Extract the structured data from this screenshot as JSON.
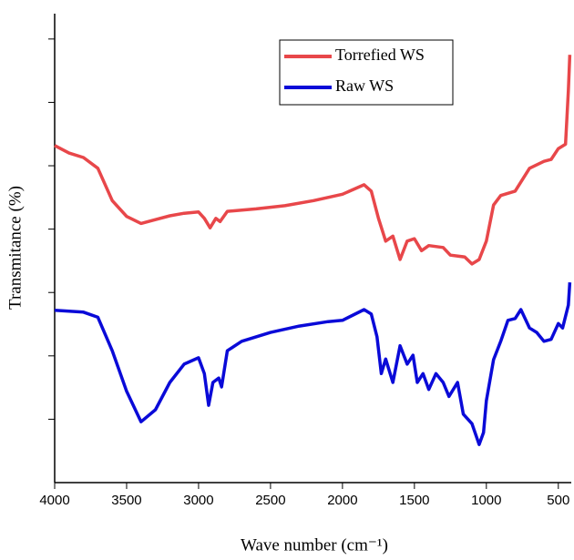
{
  "chart_data": {
    "type": "line",
    "xlabel": "Wave number (cm⁻¹)",
    "ylabel": "Transmitance (%)",
    "xlim": [
      4000,
      410
    ],
    "xticks": [
      4000,
      3500,
      3000,
      2500,
      2000,
      1500,
      1000,
      500
    ],
    "ylim": [
      0,
      74
    ],
    "yticks": [
      10,
      20,
      30,
      40,
      50,
      60,
      70
    ],
    "legend": "upper right",
    "series": [
      {
        "name": "Torrefied WS",
        "color": "#e8474a",
        "x": [
          4000,
          3900,
          3800,
          3700,
          3600,
          3500,
          3400,
          3300,
          3200,
          3100,
          3000,
          2960,
          2920,
          2880,
          2850,
          2800,
          2600,
          2400,
          2200,
          2000,
          1850,
          1800,
          1750,
          1700,
          1650,
          1600,
          1550,
          1500,
          1450,
          1400,
          1300,
          1250,
          1150,
          1100,
          1050,
          1000,
          950,
          900,
          800,
          700,
          600,
          550,
          500,
          450,
          430,
          420
        ],
        "values": [
          53.2,
          52.0,
          51.3,
          49.6,
          44.5,
          42.0,
          40.9,
          41.5,
          42.1,
          42.5,
          42.7,
          41.7,
          40.2,
          41.7,
          41.2,
          42.8,
          43.2,
          43.7,
          44.5,
          45.5,
          47.0,
          46.0,
          41.7,
          38.1,
          38.9,
          35.2,
          38.1,
          38.5,
          36.6,
          37.4,
          37.1,
          35.9,
          35.6,
          34.5,
          35.2,
          38.1,
          43.8,
          45.3,
          46.0,
          49.6,
          50.7,
          51.0,
          52.7,
          53.4,
          61.8,
          67.5
        ]
      },
      {
        "name": "Raw WS",
        "color": "#0a0ad8",
        "x": [
          4000,
          3800,
          3700,
          3600,
          3500,
          3400,
          3300,
          3200,
          3100,
          3000,
          2960,
          2930,
          2900,
          2860,
          2840,
          2800,
          2700,
          2500,
          2300,
          2100,
          2000,
          1850,
          1800,
          1760,
          1730,
          1700,
          1650,
          1600,
          1550,
          1510,
          1480,
          1440,
          1400,
          1350,
          1300,
          1260,
          1200,
          1160,
          1100,
          1050,
          1020,
          1000,
          950,
          900,
          850,
          800,
          760,
          700,
          650,
          600,
          550,
          500,
          470,
          430,
          420
        ],
        "values": [
          27.2,
          26.9,
          26.1,
          20.8,
          14.4,
          9.6,
          11.5,
          15.8,
          18.7,
          19.7,
          17.2,
          12.2,
          15.8,
          16.5,
          15.1,
          20.8,
          22.3,
          23.7,
          24.7,
          25.4,
          25.6,
          27.3,
          26.6,
          23.0,
          17.2,
          19.5,
          15.8,
          21.6,
          18.7,
          20.1,
          15.8,
          17.2,
          14.7,
          17.2,
          15.8,
          13.6,
          15.8,
          10.8,
          9.3,
          6.0,
          7.9,
          12.9,
          19.4,
          22.3,
          25.6,
          25.9,
          27.3,
          24.4,
          23.7,
          22.3,
          22.6,
          25.1,
          24.4,
          28.0,
          31.6
        ]
      }
    ]
  }
}
